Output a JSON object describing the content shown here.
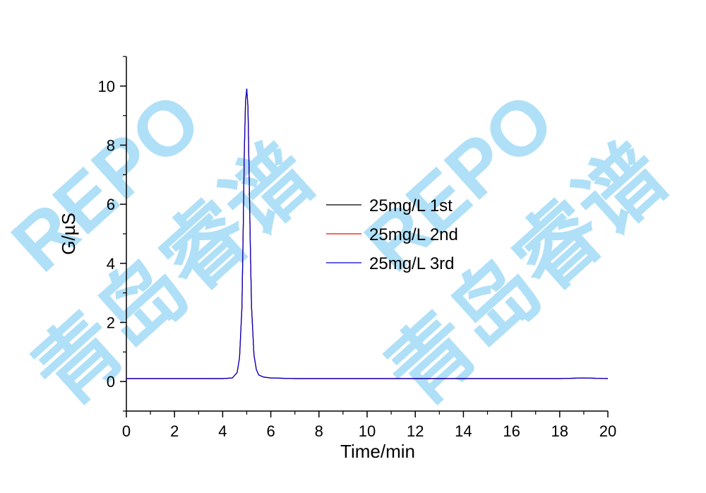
{
  "watermark": {
    "latin": "REPO",
    "chinese": "青岛睿谱",
    "color": "#6ec6f0",
    "accent_color": "#9fd89f"
  },
  "chart_data": {
    "type": "line",
    "xlabel": "Time/min",
    "ylabel": "G/µS",
    "xlim": [
      0,
      20
    ],
    "ylim": [
      -1,
      11
    ],
    "x_ticks": [
      0,
      2,
      4,
      6,
      8,
      10,
      12,
      14,
      16,
      18,
      20
    ],
    "y_ticks": [
      0,
      2,
      4,
      6,
      8,
      10
    ],
    "grid": false,
    "legend_position": "center-right",
    "series": [
      {
        "name": "25mg/L 1st",
        "color": "#000000",
        "x": [
          0,
          1,
          2,
          3,
          4,
          4.4,
          4.6,
          4.7,
          4.8,
          4.85,
          4.9,
          4.95,
          5.0,
          5.05,
          5.1,
          5.15,
          5.2,
          5.3,
          5.4,
          5.5,
          5.7,
          6.0,
          7,
          8,
          10,
          12,
          14,
          16,
          18,
          19,
          20
        ],
        "y": [
          0.1,
          0.1,
          0.1,
          0.1,
          0.1,
          0.12,
          0.3,
          0.8,
          2.5,
          5.0,
          7.8,
          9.5,
          9.9,
          9.3,
          7.0,
          4.5,
          2.5,
          0.9,
          0.4,
          0.22,
          0.15,
          0.12,
          0.1,
          0.1,
          0.1,
          0.1,
          0.1,
          0.1,
          0.1,
          0.12,
          0.1
        ]
      },
      {
        "name": "25mg/L 2nd",
        "color": "#ff0000",
        "x": [
          0,
          1,
          2,
          3,
          4,
          4.4,
          4.6,
          4.7,
          4.8,
          4.85,
          4.9,
          4.95,
          5.0,
          5.05,
          5.1,
          5.15,
          5.2,
          5.3,
          5.4,
          5.5,
          5.7,
          6.0,
          7,
          8,
          10,
          12,
          14,
          16,
          18,
          19,
          20
        ],
        "y": [
          0.1,
          0.1,
          0.1,
          0.1,
          0.1,
          0.12,
          0.3,
          0.8,
          2.5,
          5.0,
          7.8,
          9.5,
          9.9,
          9.3,
          7.0,
          4.5,
          2.5,
          0.9,
          0.4,
          0.22,
          0.15,
          0.12,
          0.1,
          0.1,
          0.1,
          0.1,
          0.1,
          0.1,
          0.1,
          0.12,
          0.1
        ]
      },
      {
        "name": "25mg/L 3rd",
        "color": "#0000cc",
        "x": [
          0,
          1,
          2,
          3,
          4,
          4.4,
          4.6,
          4.7,
          4.8,
          4.85,
          4.9,
          4.95,
          5.0,
          5.05,
          5.1,
          5.15,
          5.2,
          5.3,
          5.4,
          5.5,
          5.7,
          6.0,
          7,
          8,
          10,
          12,
          14,
          16,
          18,
          19,
          20
        ],
        "y": [
          0.1,
          0.1,
          0.1,
          0.1,
          0.1,
          0.12,
          0.3,
          0.8,
          2.5,
          5.0,
          7.8,
          9.5,
          9.9,
          9.3,
          7.0,
          4.5,
          2.5,
          0.9,
          0.4,
          0.22,
          0.15,
          0.12,
          0.1,
          0.1,
          0.1,
          0.1,
          0.1,
          0.1,
          0.1,
          0.12,
          0.1
        ]
      }
    ]
  }
}
